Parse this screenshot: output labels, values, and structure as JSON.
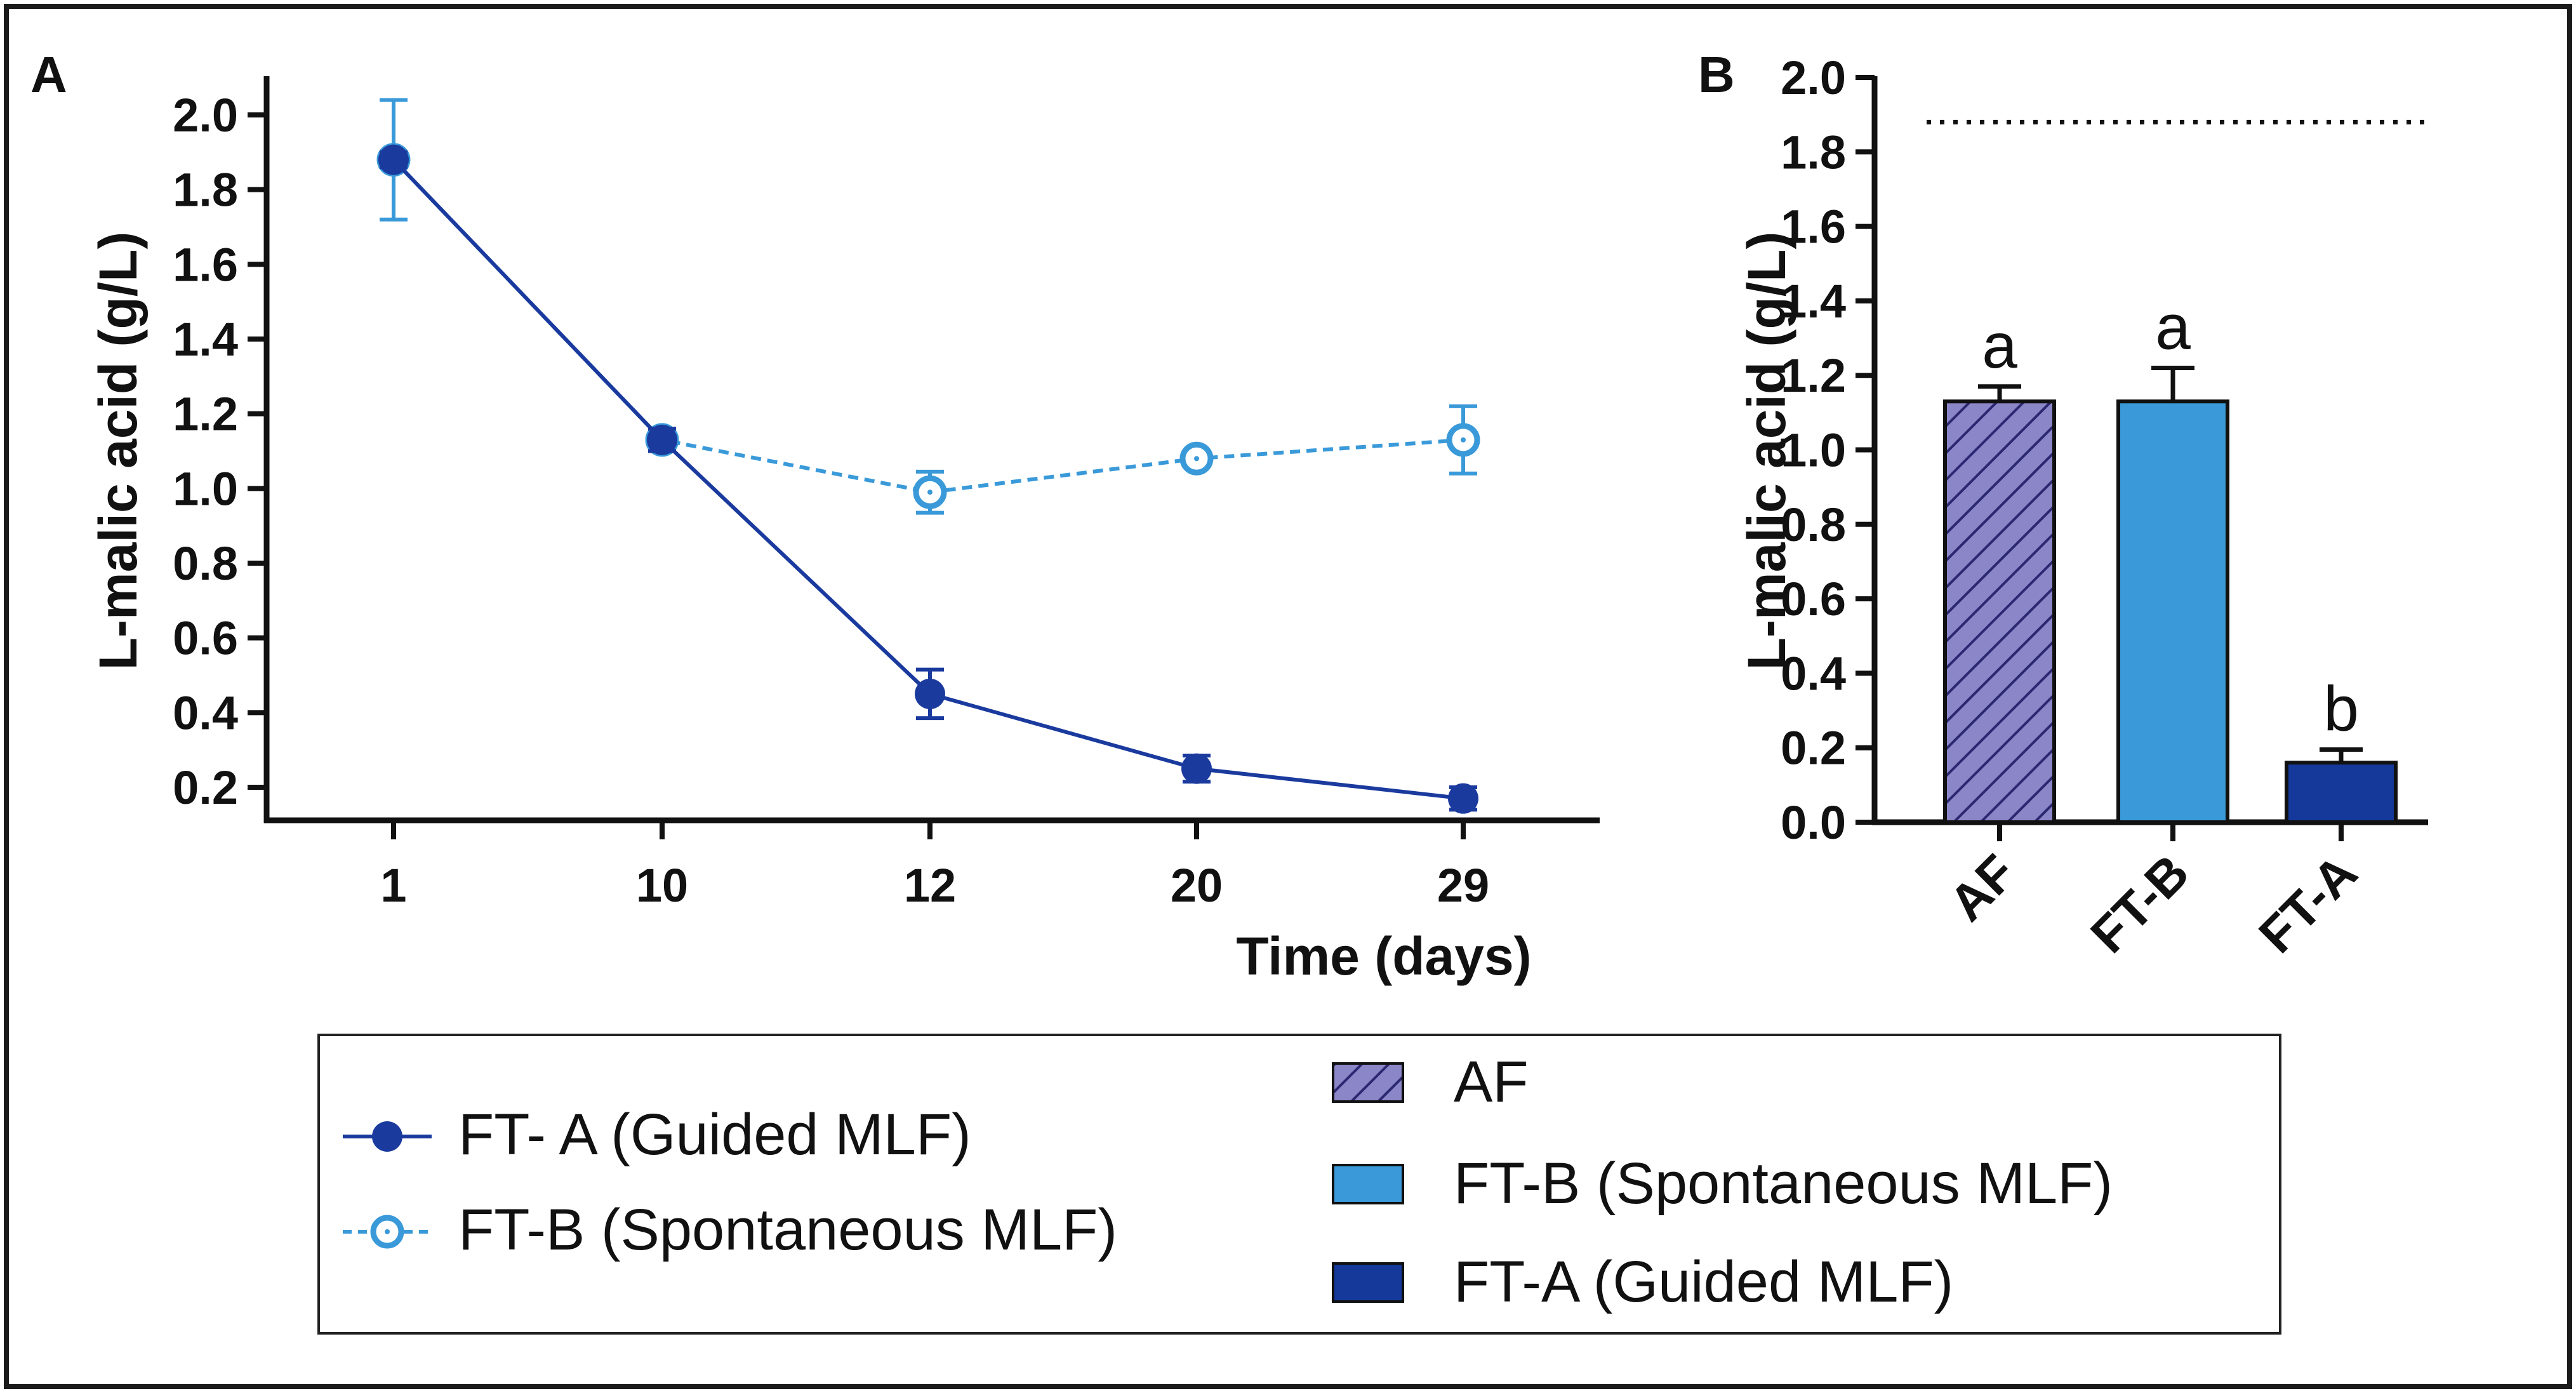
{
  "chart_data": [
    {
      "panel": "A",
      "type": "line",
      "xlabel": "Time (days)",
      "ylabel": "L-malic acid (g/L)",
      "categories": [
        "1",
        "10",
        "12",
        "20",
        "29"
      ],
      "ylim": [
        0.1,
        2.1
      ],
      "yticks": [
        0.2,
        0.4,
        0.6,
        0.8,
        1.0,
        1.2,
        1.4,
        1.6,
        1.8,
        2.0
      ],
      "ytick_labels": [
        "0.2",
        "0.4",
        "0.6",
        "0.8",
        "1.0",
        "1.2",
        "1.4",
        "1.6",
        "1.8",
        "2.0"
      ],
      "series": [
        {
          "name": "FT- A (Guided MLF)",
          "color": "#1a3a9e",
          "marker": "filled-circle",
          "line": "solid",
          "values": [
            1.88,
            1.13,
            0.45,
            0.25,
            0.17
          ],
          "errors": [
            0.02,
            0.03,
            0.065,
            0.035,
            0.03
          ]
        },
        {
          "name": "FT-B (Spontaneous MLF)",
          "color": "#3a9ad9",
          "marker": "open-circle",
          "line": "dashed",
          "values": [
            1.88,
            1.13,
            0.99,
            1.08,
            1.13
          ],
          "errors": [
            0.16,
            0.03,
            0.055,
            0.02,
            0.09
          ]
        }
      ]
    },
    {
      "panel": "B",
      "type": "bar",
      "ylabel": "L-malic acid (g/L)",
      "categories": [
        "AF",
        "FT-B",
        "FT-A"
      ],
      "values": [
        1.13,
        1.13,
        0.16
      ],
      "errors": [
        0.04,
        0.09,
        0.035
      ],
      "significance": [
        "a",
        "a",
        "b"
      ],
      "colors": [
        "#8b86c8",
        "#3a9ad9",
        "#14399a"
      ],
      "patterns": [
        "hatched",
        "solid",
        "solid"
      ],
      "reference_line": 1.88,
      "ylim": [
        0.0,
        2.0
      ],
      "yticks": [
        0.0,
        0.2,
        0.4,
        0.6,
        0.8,
        1.0,
        1.2,
        1.4,
        1.6,
        1.8,
        2.0
      ],
      "ytick_labels": [
        "0.0",
        "0.2",
        "0.4",
        "0.6",
        "0.8",
        "1.0",
        "1.2",
        "1.4",
        "1.6",
        "1.8",
        "2.0"
      ]
    }
  ],
  "panel_labels": [
    "A",
    "B"
  ],
  "legend": {
    "line_entries": [
      "FT- A (Guided MLF)",
      "FT-B (Spontaneous MLF)"
    ],
    "bar_entries": [
      "AF",
      "FT-B (Spontaneous MLF)",
      "FT-A (Guided MLF)"
    ]
  }
}
